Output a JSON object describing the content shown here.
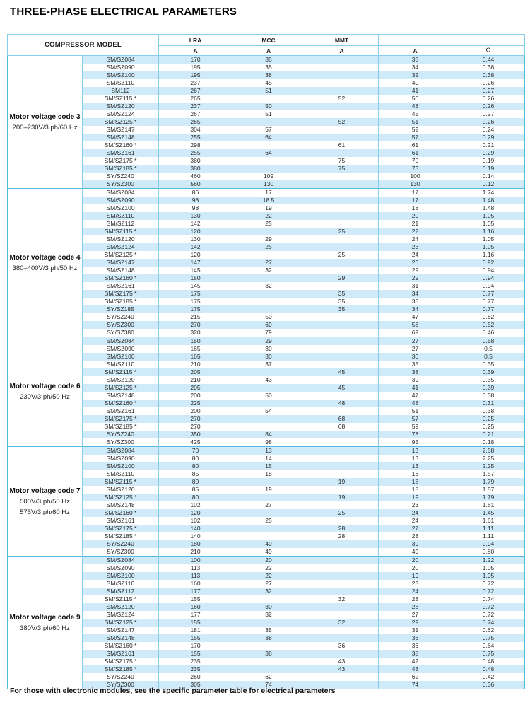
{
  "title": "THREE-PHASE ELECTRICAL PARAMETERS",
  "footer": "For those with electronic modules, see the specific parameter table for electrical parameters",
  "colors": {
    "row_fill": "#cfeaf8",
    "cell_border": "#85cfed",
    "group_separator": "#54b9e0"
  },
  "table": {
    "header": {
      "model_label": "COMPRESSOR MODEL",
      "columns": [
        {
          "label": "LRA",
          "unit": "A"
        },
        {
          "label": "MCC",
          "unit": "A"
        },
        {
          "label": "MMT",
          "unit": "A"
        },
        {
          "label": "",
          "unit": "A"
        },
        {
          "label": "",
          "unit": "Ω"
        }
      ]
    },
    "groups": [
      {
        "code": "Motor voltage code 3",
        "voltage": [
          "200–230V/3 ph/60 Hz"
        ],
        "rows": [
          [
            "SM/SZ084",
            "170",
            "35",
            "",
            "35",
            "0.44"
          ],
          [
            "SM/SZ090",
            "195",
            "35",
            "",
            "34",
            "0.38"
          ],
          [
            "SM/SZ100",
            "195",
            "38",
            "",
            "32",
            "0.38"
          ],
          [
            "SM/SZ110",
            "237",
            "45",
            "",
            "40",
            "0.26"
          ],
          [
            "SM112",
            "267",
            "51",
            "",
            "41",
            "0.27"
          ],
          [
            "SM/SZ115 *",
            "265",
            "",
            "52",
            "50",
            "0.26"
          ],
          [
            "SM/SZ120",
            "237",
            "50",
            "",
            "48",
            "0.26"
          ],
          [
            "SM/SZ124",
            "267",
            "51",
            "",
            "45",
            "0.27"
          ],
          [
            "SM/SZ125 *",
            "265",
            "",
            "52",
            "51",
            "0.26"
          ],
          [
            "SM/SZ147",
            "304",
            "57",
            "",
            "52",
            "0.24"
          ],
          [
            "SM/SZ148",
            "255",
            "64",
            "",
            "57",
            "0.29"
          ],
          [
            "SM/SZ160 *",
            "298",
            "",
            "61",
            "61",
            "0.21"
          ],
          [
            "SM/SZ161",
            "255",
            "64",
            "",
            "61",
            "0.29"
          ],
          [
            "SM/SZ175 *",
            "380",
            "",
            "75",
            "70",
            "0.19"
          ],
          [
            "SM/SZ185 *",
            "380",
            "",
            "75",
            "73",
            "0.19"
          ],
          [
            "SY/SZ240",
            "460",
            "109",
            "",
            "100",
            "0.14"
          ],
          [
            "SY/SZ300",
            "560",
            "130",
            "",
            "130",
            "0.12"
          ]
        ]
      },
      {
        "code": "Motor voltage code 4",
        "voltage": [
          "380–400V/3 ph/50 Hz"
        ],
        "rows": [
          [
            "SM/SZ084",
            "86",
            "17",
            "",
            "17",
            "1.74"
          ],
          [
            "SM/SZ090",
            "98",
            "18.5",
            "",
            "17",
            "1.48"
          ],
          [
            "SM/SZ100",
            "98",
            "19",
            "",
            "18",
            "1.48"
          ],
          [
            "SM/SZ110",
            "130",
            "22",
            "",
            "20",
            "1.05"
          ],
          [
            "SM/SZ112",
            "142",
            "25",
            "",
            "21",
            "1.05"
          ],
          [
            "SM/SZ115 *",
            "120",
            "",
            "25",
            "22",
            "1.16"
          ],
          [
            "SM/SZ120",
            "130",
            "29",
            "",
            "24",
            "1.05"
          ],
          [
            "SM/SZ124",
            "142",
            "25",
            "",
            "23",
            "1.05"
          ],
          [
            "SM/SZ125 *",
            "120",
            "",
            "25",
            "24",
            "1.16"
          ],
          [
            "SM/SZ147",
            "147",
            "27",
            "",
            "26",
            "0.92"
          ],
          [
            "SM/SZ148",
            "145",
            "32",
            "",
            "29",
            "0.94"
          ],
          [
            "SM/SZ160 *",
            "150",
            "",
            "29",
            "29",
            "0.94"
          ],
          [
            "SM/SZ161",
            "145",
            "32",
            "",
            "31",
            "0.94"
          ],
          [
            "SM/SZ175 *",
            "175",
            "",
            "35",
            "34",
            "0.77"
          ],
          [
            "SM/SZ185 *",
            "175",
            "",
            "35",
            "35",
            "0.77"
          ],
          [
            "SY/SZ185",
            "175",
            "",
            "35",
            "34",
            "0.77"
          ],
          [
            "SY/SZ240",
            "215",
            "50",
            "",
            "47",
            "0.62"
          ],
          [
            "SY/SZ300",
            "270",
            "69",
            "",
            "58",
            "0.52"
          ],
          [
            "SY/SZ380",
            "320",
            "79",
            "",
            "69",
            "0.46"
          ]
        ]
      },
      {
        "code": "Motor voltage code 6",
        "voltage": [
          "230V/3 ph/50 Hz"
        ],
        "rows": [
          [
            "SM/SZ084",
            "150",
            "29",
            "",
            "27",
            "0.58"
          ],
          [
            "SM/SZ090",
            "165",
            "30",
            "",
            "27",
            "0.5"
          ],
          [
            "SM/SZ100",
            "165",
            "30",
            "",
            "30",
            "0.5"
          ],
          [
            "SM/SZ110",
            "210",
            "37",
            "",
            "35",
            "0.35"
          ],
          [
            "SM/SZ115 *",
            "205",
            "",
            "45",
            "38",
            "0.39"
          ],
          [
            "SM/SZ120",
            "210",
            "43",
            "",
            "39",
            "0.35"
          ],
          [
            "SM/SZ125 *",
            "205",
            "",
            "45",
            "41",
            "0.39"
          ],
          [
            "SM/SZ148",
            "200",
            "50",
            "",
            "47",
            "0.38"
          ],
          [
            "SM/SZ160 *",
            "225",
            "",
            "48",
            "48",
            "0.31"
          ],
          [
            "SM/SZ161",
            "200",
            "54",
            "",
            "51",
            "0.38"
          ],
          [
            "SM/SZ175 *",
            "270",
            "",
            "68",
            "57",
            "0.25"
          ],
          [
            "SM/SZ185 *",
            "270",
            "",
            "68",
            "59",
            "0.25"
          ],
          [
            "SY/SZ240",
            "350",
            "84",
            "",
            "78",
            "0.21"
          ],
          [
            "SY/SZ300",
            "425",
            "98",
            "",
            "95",
            "0.18"
          ]
        ]
      },
      {
        "code": "Motor voltage code 7",
        "voltage": [
          "500V/3 ph/50 Hz",
          "575V/3 ph/60 Hz"
        ],
        "rows": [
          [
            "SM/SZ084",
            "70",
            "13",
            "",
            "13",
            "2.58"
          ],
          [
            "SM/SZ090",
            "80",
            "14",
            "",
            "13",
            "2.25"
          ],
          [
            "SM/SZ100",
            "80",
            "15",
            "",
            "13",
            "2.25"
          ],
          [
            "SM/SZ110",
            "85",
            "18",
            "",
            "16",
            "1.57"
          ],
          [
            "SM/SZ115 *",
            "80",
            "",
            "19",
            "18",
            "1.79"
          ],
          [
            "SM/SZ120",
            "85",
            "19",
            "",
            "18",
            "1.57"
          ],
          [
            "SM/SZ125 *",
            "80",
            "",
            "19",
            "19",
            "1.79"
          ],
          [
            "SM/SZ148",
            "102",
            "27",
            "",
            "23",
            "1.61"
          ],
          [
            "SM/SZ160 *",
            "120",
            "",
            "25",
            "24",
            "1.45"
          ],
          [
            "SM/SZ161",
            "102",
            "25",
            "",
            "24",
            "1.61"
          ],
          [
            "SM/SZ175 *",
            "140",
            "",
            "28",
            "27",
            "1.11"
          ],
          [
            "SM/SZ185 *",
            "140",
            "",
            "28",
            "28",
            "1.11"
          ],
          [
            "SY/SZ240",
            "180",
            "40",
            "",
            "39",
            "0.94"
          ],
          [
            "SY/SZ300",
            "210",
            "49",
            "",
            "49",
            "0.80"
          ]
        ]
      },
      {
        "code": "Motor voltage code 9",
        "voltage": [
          "380V/3 ph/60 Hz"
        ],
        "rows": [
          [
            "SM/SZ084",
            "100",
            "20",
            "",
            "20",
            "1.22"
          ],
          [
            "SM/SZ090",
            "113",
            "22",
            "",
            "20",
            "1.05"
          ],
          [
            "SM/SZ100",
            "113",
            "22",
            "",
            "19",
            "1.05"
          ],
          [
            "SM/SZ110",
            "160",
            "27",
            "",
            "23",
            "0.72"
          ],
          [
            "SM/SZ112",
            "177",
            "32",
            "",
            "24",
            "0.72"
          ],
          [
            "SM/SZ115 *",
            "155",
            "",
            "32",
            "28",
            "0.74"
          ],
          [
            "SM/SZ120",
            "160",
            "30",
            "",
            "28",
            "0.72"
          ],
          [
            "SM/SZ124",
            "177",
            "32",
            "",
            "27",
            "0.72"
          ],
          [
            "SM/SZ125 *",
            "155",
            "",
            "32",
            "29",
            "0.74"
          ],
          [
            "SM/SZ147",
            "181",
            "35",
            "",
            "31",
            "0.62"
          ],
          [
            "SM/SZ148",
            "155",
            "38",
            "",
            "36",
            "0.75"
          ],
          [
            "SM/SZ160 *",
            "170",
            "",
            "36",
            "36",
            "0.64"
          ],
          [
            "SM/SZ161",
            "155",
            "38",
            "",
            "38",
            "0.75"
          ],
          [
            "SM/SZ175 *",
            "235",
            "",
            "43",
            "42",
            "0.48"
          ],
          [
            "SM/SZ185 *",
            "235",
            "",
            "43",
            "43",
            "0.48"
          ],
          [
            "SY/SZ240",
            "260",
            "62",
            "",
            "62",
            "0.42"
          ],
          [
            "SY/SZ300",
            "305",
            "74",
            "",
            "74",
            "0.36"
          ]
        ]
      }
    ]
  }
}
